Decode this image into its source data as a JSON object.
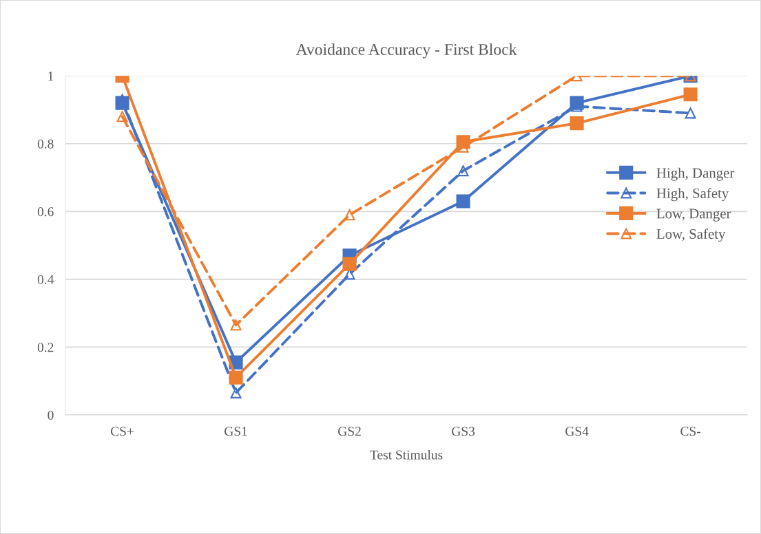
{
  "chart_data": {
    "type": "line",
    "title": "Avoidance Accuracy - First Block",
    "xlabel": "Test Stimulus",
    "categories": [
      "CS+",
      "GS1",
      "GS2",
      "GS3",
      "GS4",
      "CS-"
    ],
    "series": [
      {
        "name": "High, Danger",
        "color": "#4472c4",
        "marker": "square",
        "line_style": "solid",
        "values": [
          0.92,
          0.155,
          0.47,
          0.63,
          0.92,
          1.0
        ]
      },
      {
        "name": "High, Safety",
        "color": "#4472c4",
        "marker": "triangle",
        "line_style": "dashed",
        "values": [
          0.93,
          0.065,
          0.415,
          0.72,
          0.91,
          0.89
        ]
      },
      {
        "name": "Low, Danger",
        "color": "#ed7d31",
        "marker": "square",
        "line_style": "solid",
        "values": [
          1.0,
          0.11,
          0.445,
          0.805,
          0.86,
          0.945
        ]
      },
      {
        "name": "Low, Safety",
        "color": "#ed7d31",
        "marker": "triangle",
        "line_style": "dashed",
        "values": [
          0.88,
          0.265,
          0.59,
          0.79,
          1.0,
          1.0
        ]
      }
    ],
    "ylim": [
      0,
      1
    ],
    "yticks": [
      0,
      0.2,
      0.4,
      0.6,
      0.8,
      1
    ],
    "grid": "y",
    "legend": "right"
  }
}
